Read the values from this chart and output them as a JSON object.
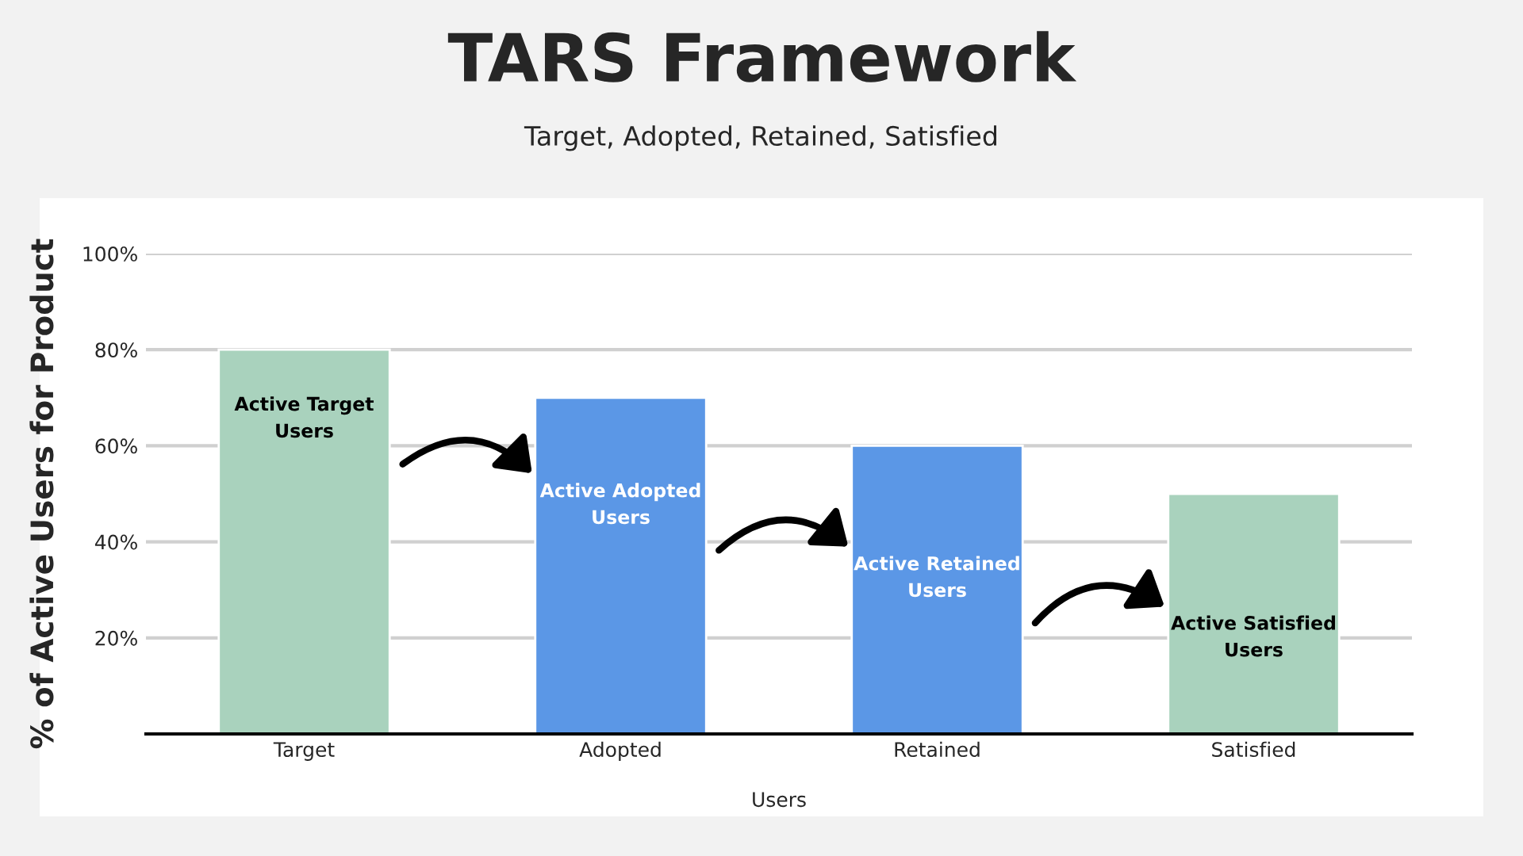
{
  "chart_data": {
    "type": "bar",
    "title": "TARS Framework",
    "subtitle": "Target, Adopted, Retained, Satisfied",
    "categories": [
      "Target",
      "Adopted",
      "Retained",
      "Satisfied"
    ],
    "values": [
      80,
      70,
      60,
      50
    ],
    "colors": [
      "#a9d2bd",
      "#5b97e6",
      "#5b97e6",
      "#a9d2bd"
    ],
    "xlabel": "Users",
    "ylabel": "% of Active Users for Product",
    "ylim": [
      0,
      100
    ],
    "yticks": [
      {
        "value": 20,
        "label": "20%"
      },
      {
        "value": 40,
        "label": "40%"
      },
      {
        "value": 60,
        "label": "60%"
      },
      {
        "value": 80,
        "label": "80%"
      },
      {
        "value": 100,
        "label": "100%"
      }
    ],
    "grid": "y",
    "legend": false,
    "annotations": [
      "Active Target Users",
      "Active Adopted Users",
      "Active Retained Users",
      "Active Satisfied Users"
    ]
  }
}
